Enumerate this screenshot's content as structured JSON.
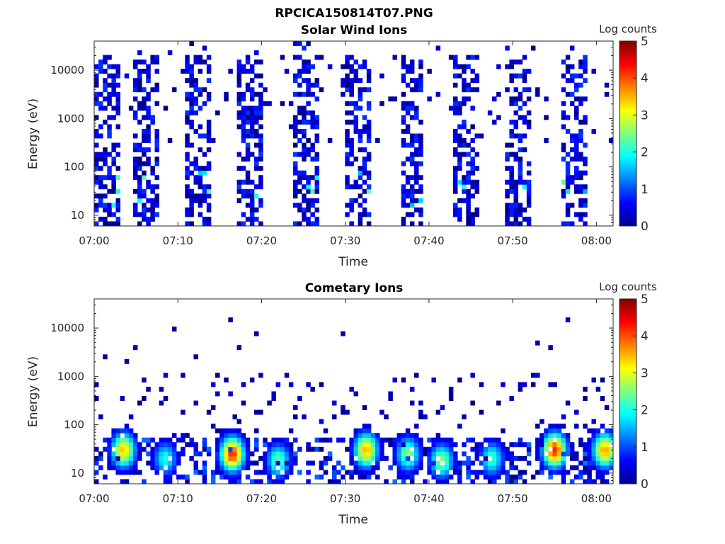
{
  "figure_title": "RPCICA150814T07.PNG",
  "chart_data": [
    {
      "type": "heatmap",
      "title": "Solar Wind Ions",
      "xlabel": "Time",
      "ylabel": "Energy (eV)",
      "x_ticks": [
        "07:00",
        "07:10",
        "07:20",
        "07:30",
        "07:40",
        "07:50",
        "08:00"
      ],
      "xlim": [
        "07:00",
        "08:02"
      ],
      "y_ticks": [
        "10",
        "100",
        "1000",
        "10000"
      ],
      "ylim": [
        6,
        40000
      ],
      "y_scale": "log",
      "colorbar": {
        "label": "Log counts",
        "range": [
          0,
          5
        ],
        "ticks": [
          "0",
          "1",
          "2",
          "3",
          "4",
          "5"
        ],
        "colormap": "jet"
      },
      "pattern": "periodic",
      "sweep_period_min": 6.4,
      "sweep_starts_min": [
        0,
        4.5,
        10.9,
        17.3,
        23.7,
        30.1,
        36.5,
        42.9,
        49.3,
        55.7
      ],
      "sweep_duration_min": 3.0,
      "peak_log_counts": 2.4,
      "seed": 7
    },
    {
      "type": "heatmap",
      "title": "Cometary Ions",
      "xlabel": "Time",
      "ylabel": "Energy (eV)",
      "x_ticks": [
        "07:00",
        "07:10",
        "07:20",
        "07:30",
        "07:40",
        "07:50",
        "08:00"
      ],
      "xlim": [
        "07:00",
        "08:02"
      ],
      "y_ticks": [
        "10",
        "100",
        "1000",
        "10000"
      ],
      "ylim": [
        6,
        40000
      ],
      "y_scale": "log",
      "colorbar": {
        "label": "Log counts",
        "range": [
          0,
          5
        ],
        "ticks": [
          "0",
          "1",
          "2",
          "3",
          "4",
          "5"
        ],
        "colormap": "jet"
      },
      "pattern": "low-energy bursts",
      "burst_peaks": [
        {
          "time_min": 3.5,
          "energy_ev": 30,
          "log_counts": 3.4
        },
        {
          "time_min": 8.5,
          "energy_ev": 20,
          "log_counts": 2.0
        },
        {
          "time_min": 16.5,
          "energy_ev": 25,
          "log_counts": 4.2
        },
        {
          "time_min": 22.0,
          "energy_ev": 18,
          "log_counts": 2.4
        },
        {
          "time_min": 32.5,
          "energy_ev": 30,
          "log_counts": 3.5
        },
        {
          "time_min": 37.5,
          "energy_ev": 25,
          "log_counts": 2.6
        },
        {
          "time_min": 41.5,
          "energy_ev": 18,
          "log_counts": 2.6
        },
        {
          "time_min": 47.5,
          "energy_ev": 20,
          "log_counts": 2.2
        },
        {
          "time_min": 55.0,
          "energy_ev": 30,
          "log_counts": 4.2
        },
        {
          "time_min": 61.0,
          "energy_ev": 30,
          "log_counts": 3.6
        }
      ],
      "seed": 11
    }
  ]
}
